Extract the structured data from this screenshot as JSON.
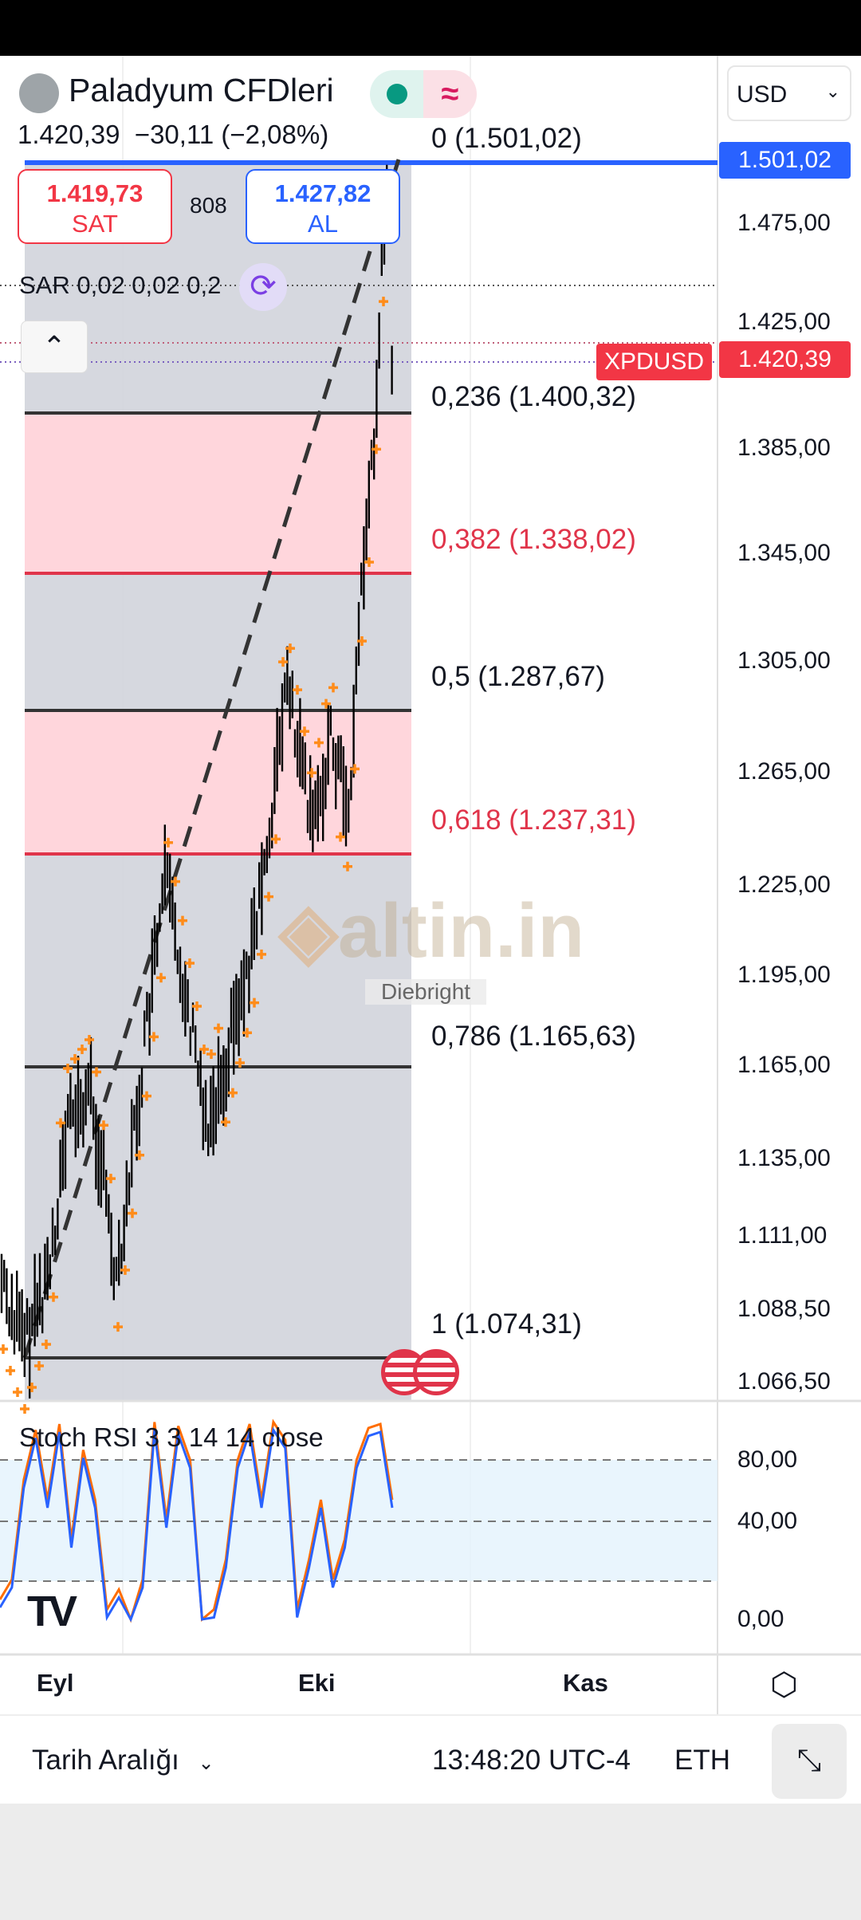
{
  "header": {
    "title": "Paladyum CFDleri",
    "last_price": "1.420,39",
    "change": "−30,11 (−2,08%)",
    "currency": "USD",
    "market_status_icon": "green-dot",
    "realtime_icon": "approx-wave"
  },
  "trade": {
    "sell_price": "1.419,73",
    "sell_label": "SAT",
    "spread": "808",
    "buy_price": "1.427,82",
    "buy_label": "AL"
  },
  "indicators": {
    "sar": "SAR 0,02 0,02 0,2",
    "stoch": "Stoch RSI 3 3 14 14 close"
  },
  "price_axis": [
    "1.475,00",
    "1.425,00",
    "1.385,00",
    "1.345,00",
    "1.305,00",
    "1.265,00",
    "1.225,00",
    "1.195,00",
    "1.165,00",
    "1.135,00",
    "1.111,00",
    "1.088,50",
    "1.066,50"
  ],
  "price_tags": {
    "high": "1.501,02",
    "symbol": "XPDUSD",
    "current": "1.420,39"
  },
  "fib_levels": [
    {
      "label": "0 (1.501,02)",
      "color": "#131722"
    },
    {
      "label": "0,236 (1.400,32)",
      "color": "#131722"
    },
    {
      "label": "0,382 (1.338,02)",
      "color": "#e0344a"
    },
    {
      "label": "0,5 (1.287,67)",
      "color": "#131722"
    },
    {
      "label": "0,618 (1.237,31)",
      "color": "#e0344a"
    },
    {
      "label": "0,786 (1.165,63)",
      "color": "#131722"
    },
    {
      "label": "1 (1.074,31)",
      "color": "#131722"
    }
  ],
  "watermark": {
    "brand": "altin.in",
    "author": "Diebright"
  },
  "stoch_axis": [
    "80,00",
    "40,00",
    "0,00"
  ],
  "time_axis": [
    "Eyl",
    "Eki",
    "Kas"
  ],
  "footer": {
    "range": "Tarih Aralığı",
    "time": "13:48:20 UTC-4",
    "session": "ETH"
  },
  "colors": {
    "accent_blue": "#2962ff",
    "red": "#f23645",
    "sar": "#ff8c1a",
    "k_line": "#2962ff",
    "d_line": "#ff6d00",
    "fib_zone": "#ffd6dc"
  }
}
